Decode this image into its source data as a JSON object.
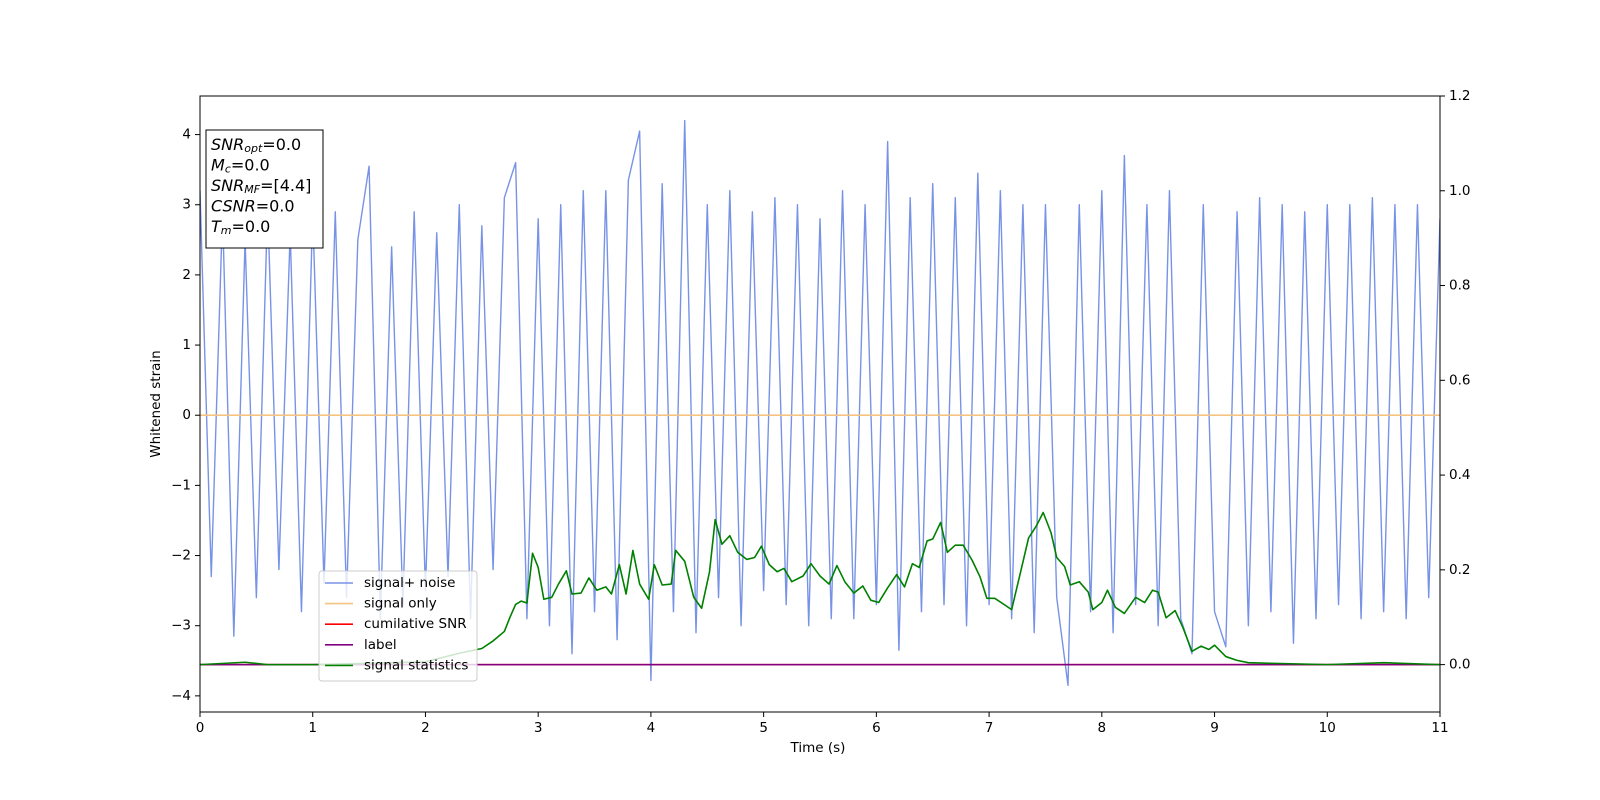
{
  "chart_data": {
    "type": "line",
    "xlabel": "Time (s)",
    "ylabel": "Whitened strain",
    "xlim": [
      0,
      11
    ],
    "xticks": [
      0,
      1,
      2,
      3,
      4,
      5,
      6,
      7,
      8,
      9,
      10,
      11
    ],
    "ylim": [
      -4.23,
      4.55
    ],
    "yticks": [
      -4,
      -3,
      -2,
      -1,
      0,
      1,
      2,
      3,
      4
    ],
    "y2lim": [
      -0.1,
      1.2
    ],
    "y2ticks": [
      {
        "value": 0,
        "label": "0.0"
      },
      {
        "value": 0.2,
        "label": "0.2"
      },
      {
        "value": 0.4,
        "label": "0.4"
      },
      {
        "value": 0.6,
        "label": "0.6"
      },
      {
        "value": 0.8,
        "label": "0.8"
      },
      {
        "value": 1.0,
        "label": "1.0"
      },
      {
        "value": 1.2,
        "label": "1.2"
      }
    ],
    "annotation": [
      {
        "main": "SNR",
        "sub": "opt",
        "rest": "=0.0"
      },
      {
        "main": "M",
        "sub": "c",
        "rest": "=0.0"
      },
      {
        "main": "SNR",
        "sub": "MF",
        "rest": "=[4.4]"
      },
      {
        "main": "CSNR",
        "rest": "=0.0"
      },
      {
        "main": "T",
        "sub": "m",
        "rest": "=0.0"
      }
    ],
    "legend": true,
    "series": [
      {
        "name": "signal+ noise",
        "color": "#7893e6",
        "x": [
          0,
          0.1,
          0.2,
          0.3,
          0.4,
          0.5,
          0.6,
          0.7,
          0.8,
          0.9,
          1,
          1.1,
          1.2,
          1.3,
          1.4,
          1.5,
          1.6,
          1.7,
          1.8,
          1.9,
          2,
          2.1,
          2.2,
          2.3,
          2.4,
          2.5,
          2.6,
          2.7,
          2.8,
          2.9,
          3,
          3.1,
          3.2,
          3.3,
          3.4,
          3.5,
          3.6,
          3.7,
          3.8,
          3.9,
          4,
          4.1,
          4.2,
          4.3,
          4.4,
          4.5,
          4.6,
          4.7,
          4.8,
          4.9,
          5,
          5.1,
          5.2,
          5.3,
          5.4,
          5.5,
          5.6,
          5.7,
          5.8,
          5.9,
          6,
          6.1,
          6.2,
          6.3,
          6.4,
          6.5,
          6.6,
          6.7,
          6.8,
          6.9,
          7,
          7.1,
          7.2,
          7.3,
          7.4,
          7.5,
          7.6,
          7.7,
          7.8,
          7.9,
          8,
          8.1,
          8.2,
          8.3,
          8.4,
          8.5,
          8.6,
          8.7,
          8.8,
          8.9,
          9,
          9.1,
          9.2,
          9.3,
          9.4,
          9.5,
          9.6,
          9.7,
          9.8,
          9.9,
          10,
          10.1,
          10.2,
          10.3,
          10.4,
          10.5,
          10.6,
          10.7,
          10.8,
          10.9,
          11
        ],
        "values": [
          3.2,
          -2.3,
          2.9,
          -3.15,
          2.5,
          -2.6,
          3.0,
          -2.2,
          2.6,
          -2.8,
          2.9,
          -2.4,
          2.9,
          -2.6,
          2.5,
          3.55,
          -2.9,
          2.4,
          -2.7,
          2.9,
          -2.5,
          2.6,
          -2.3,
          3.0,
          -2.9,
          2.7,
          -2.2,
          3.1,
          3.6,
          -2.9,
          2.8,
          -3.0,
          3.0,
          -3.4,
          3.2,
          -2.8,
          3.2,
          -3.2,
          3.35,
          4.05,
          -3.78,
          3.3,
          -2.8,
          4.2,
          -3.1,
          3.0,
          -2.6,
          3.2,
          -3.0,
          2.9,
          -2.5,
          3.1,
          -2.7,
          3.0,
          -3.0,
          2.8,
          -2.9,
          3.2,
          -2.9,
          3.0,
          -2.7,
          3.9,
          -3.35,
          3.1,
          -2.8,
          3.3,
          -2.7,
          3.1,
          -3.0,
          3.45,
          -2.7,
          3.2,
          -2.9,
          3.0,
          -3.1,
          3.0,
          -2.6,
          -3.85,
          3.0,
          -2.8,
          3.2,
          -3.1,
          3.7,
          -2.7,
          3.0,
          -3.0,
          3.2,
          -2.9,
          -3.4,
          3.0,
          -2.8,
          -3.3,
          2.9,
          -3.0,
          3.1,
          -2.8,
          3.0,
          -3.25,
          2.9,
          -2.9,
          3.0,
          -2.7,
          3.0,
          -2.9,
          3.1,
          -2.8,
          3.0,
          -2.9,
          3.0,
          -2.6,
          2.8
        ]
      },
      {
        "name": "signal only",
        "color": "#f5c382",
        "x": [
          0,
          11
        ],
        "values": [
          0,
          0
        ]
      },
      {
        "name": "cumilative SNR",
        "color": "#ff0000",
        "axis": "y2",
        "x": [
          0,
          11
        ],
        "values": [
          0,
          0
        ]
      },
      {
        "name": "label",
        "color": "#800080",
        "axis": "y2",
        "x": [
          0,
          11
        ],
        "values": [
          0,
          0
        ]
      },
      {
        "name": "signal statistics",
        "color": "#008000",
        "axis": "y2",
        "x": [
          0,
          0.4,
          0.6,
          1.0,
          2.0,
          2.3,
          2.5,
          2.6,
          2.7,
          2.75,
          2.8,
          2.85,
          2.9,
          2.95,
          3.0,
          3.05,
          3.12,
          3.18,
          3.25,
          3.3,
          3.38,
          3.45,
          3.52,
          3.6,
          3.65,
          3.72,
          3.78,
          3.84,
          3.9,
          3.98,
          4.03,
          4.1,
          4.18,
          4.22,
          4.3,
          4.38,
          4.45,
          4.52,
          4.57,
          4.63,
          4.7,
          4.77,
          4.85,
          4.92,
          4.98,
          5.05,
          5.12,
          5.18,
          5.25,
          5.35,
          5.42,
          5.5,
          5.58,
          5.65,
          5.72,
          5.8,
          5.88,
          5.95,
          6.02,
          6.1,
          6.18,
          6.25,
          6.32,
          6.38,
          6.45,
          6.5,
          6.57,
          6.63,
          6.7,
          6.77,
          6.85,
          6.92,
          6.98,
          7.05,
          7.12,
          7.2,
          7.28,
          7.35,
          7.42,
          7.48,
          7.55,
          7.6,
          7.67,
          7.72,
          7.8,
          7.88,
          7.92,
          8.0,
          8.05,
          8.12,
          8.2,
          8.3,
          8.38,
          8.45,
          8.5,
          8.57,
          8.65,
          8.72,
          8.8,
          8.88,
          8.95,
          9.0,
          9.1,
          9.2,
          9.3,
          10.0,
          10.5,
          11
        ],
        "values": [
          0,
          0.005,
          0,
          0,
          0.006,
          0.024,
          0.034,
          0.05,
          0.07,
          0.1,
          0.127,
          0.134,
          0.13,
          0.235,
          0.205,
          0.138,
          0.142,
          0.17,
          0.198,
          0.149,
          0.151,
          0.183,
          0.157,
          0.164,
          0.149,
          0.211,
          0.149,
          0.241,
          0.17,
          0.138,
          0.211,
          0.168,
          0.17,
          0.241,
          0.218,
          0.142,
          0.119,
          0.196,
          0.306,
          0.254,
          0.272,
          0.237,
          0.222,
          0.226,
          0.25,
          0.211,
          0.196,
          0.203,
          0.175,
          0.187,
          0.213,
          0.187,
          0.17,
          0.209,
          0.175,
          0.151,
          0.166,
          0.136,
          0.131,
          0.162,
          0.19,
          0.164,
          0.213,
          0.205,
          0.261,
          0.265,
          0.3,
          0.237,
          0.252,
          0.252,
          0.22,
          0.185,
          0.14,
          0.14,
          0.129,
          0.116,
          0.196,
          0.267,
          0.293,
          0.321,
          0.278,
          0.226,
          0.207,
          0.168,
          0.175,
          0.153,
          0.116,
          0.131,
          0.157,
          0.121,
          0.108,
          0.142,
          0.131,
          0.157,
          0.153,
          0.099,
          0.114,
          0.078,
          0.028,
          0.039,
          0.032,
          0.041,
          0.017,
          0.009,
          0.004,
          0,
          0.004,
          0
        ]
      }
    ]
  }
}
